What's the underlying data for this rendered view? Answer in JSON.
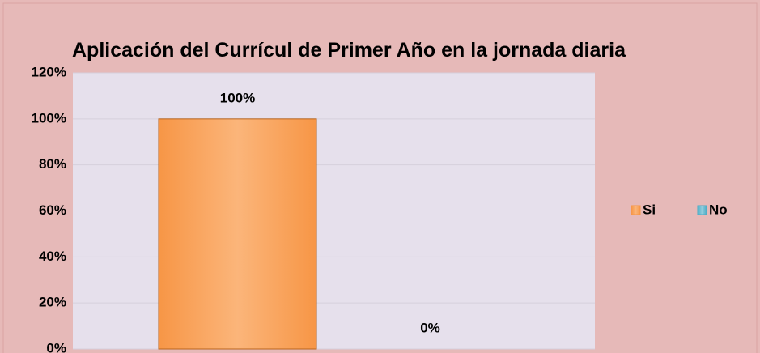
{
  "chart_data": {
    "type": "bar",
    "title": "Aplicación del Currícul de Primer Año en la jornada diaria",
    "categories": [
      null
    ],
    "series": [
      {
        "name": "Si",
        "color": "#f79646",
        "values": [
          100
        ],
        "value_labels": [
          "100%"
        ]
      },
      {
        "name": "No",
        "color": "#4bacc6",
        "values": [
          0
        ],
        "value_labels": [
          "0%"
        ]
      }
    ],
    "ylim": [
      0,
      120
    ],
    "yticks": [
      {
        "value": 0,
        "label": "0%"
      },
      {
        "value": 20,
        "label": "20%"
      },
      {
        "value": 40,
        "label": "40%"
      },
      {
        "value": 60,
        "label": "60%"
      },
      {
        "value": 80,
        "label": "80%"
      },
      {
        "value": 100,
        "label": "100%"
      },
      {
        "value": 120,
        "label": "120%"
      }
    ],
    "grid": true,
    "legend": "right"
  }
}
